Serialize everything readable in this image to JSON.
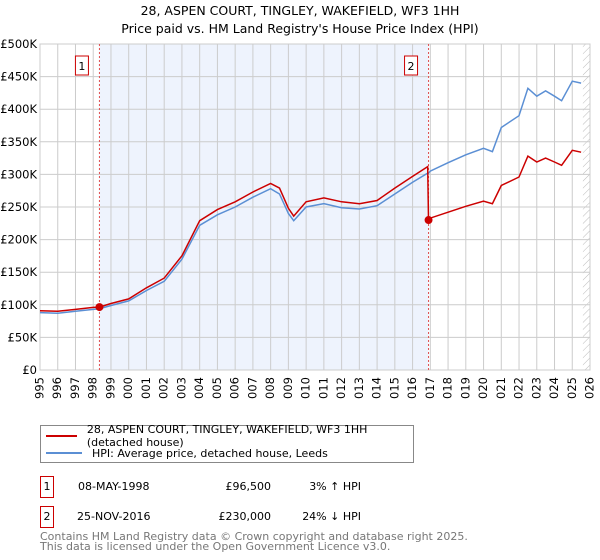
{
  "title": "28, ASPEN COURT, TINGLEY, WAKEFIELD, WF3 1HH",
  "subtitle": "Price paid vs. HM Land Registry's House Price Index (HPI)",
  "chart_data": {
    "type": "line",
    "xlim": [
      1995,
      2026
    ],
    "ylim": [
      0,
      500000
    ],
    "yticks": [
      0,
      50000,
      100000,
      150000,
      200000,
      250000,
      300000,
      350000,
      400000,
      450000,
      500000
    ],
    "ytick_labels": [
      "£0",
      "£50K",
      "£100K",
      "£150K",
      "£200K",
      "£250K",
      "£300K",
      "£350K",
      "£400K",
      "£450K",
      "£500K"
    ],
    "xticks": [
      1995,
      1996,
      1997,
      1998,
      1999,
      2000,
      2001,
      2002,
      2003,
      2004,
      2005,
      2006,
      2007,
      2008,
      2009,
      2010,
      2011,
      2012,
      2013,
      2014,
      2015,
      2016,
      2017,
      2018,
      2019,
      2020,
      2021,
      2022,
      2023,
      2024,
      2025,
      2026
    ],
    "grid": true,
    "shaded_period": [
      1998.35,
      2016.9
    ],
    "forecast_hatch_from": 2025.6,
    "colors": {
      "property": "#cc0000",
      "hpi": "#5b8fd4",
      "shade": "#eef3fd"
    },
    "series": [
      {
        "name": "28, ASPEN COURT, TINGLEY, WAKEFIELD, WF3 1HH (detached house)",
        "color": "#cc0000",
        "x": [
          1995,
          1996,
          1997,
          1998,
          1998.35,
          1999,
          2000,
          2001,
          2002,
          2003,
          2004,
          2005,
          2006,
          2007,
          2008,
          2008.5,
          2009,
          2009.3,
          2010,
          2011,
          2012,
          2013,
          2014,
          2015,
          2016,
          2016.85,
          2016.9,
          2017,
          2018,
          2019,
          2020,
          2020.5,
          2021,
          2022,
          2022.5,
          2023,
          2023.5,
          2024,
          2024.4,
          2025,
          2025.5
        ],
        "y": [
          91000,
          90000,
          93000,
          96000,
          96500,
          102000,
          109000,
          126000,
          141000,
          175000,
          229000,
          246000,
          258000,
          273000,
          286000,
          279000,
          248000,
          236000,
          258000,
          264000,
          258000,
          255000,
          260000,
          279000,
          297000,
          312000,
          230000,
          233000,
          242000,
          251000,
          259000,
          255000,
          283000,
          296000,
          328000,
          319000,
          325000,
          319000,
          314000,
          337000,
          334000
        ]
      },
      {
        "name": "HPI: Average price, detached house, Leeds",
        "color": "#5b8fd4",
        "x": [
          1995,
          1996,
          1997,
          1998,
          1998.35,
          1999,
          2000,
          2001,
          2002,
          2003,
          2004,
          2005,
          2006,
          2007,
          2008,
          2008.5,
          2009,
          2009.3,
          2010,
          2011,
          2012,
          2013,
          2014,
          2015,
          2016,
          2016.85,
          2016.9,
          2017,
          2018,
          2019,
          2020,
          2020.5,
          2021,
          2022,
          2022.5,
          2023,
          2023.5,
          2024,
          2024.4,
          2025,
          2025.5
        ],
        "y": [
          88000,
          87000,
          90000,
          93000,
          94000,
          99000,
          106000,
          122000,
          136000,
          170000,
          222000,
          238000,
          250000,
          265000,
          278000,
          270000,
          240000,
          229000,
          250000,
          255000,
          249000,
          247000,
          252000,
          270000,
          288000,
          302000,
          302000,
          305000,
          318000,
          330000,
          340000,
          335000,
          372000,
          390000,
          432000,
          420000,
          428000,
          420000,
          413000,
          443000,
          440000
        ]
      }
    ],
    "markers": [
      {
        "label": "1",
        "x": 1998.35,
        "y": 96500
      },
      {
        "label": "2",
        "x": 2016.9,
        "y": 230000
      }
    ]
  },
  "legend": {
    "property": "28, ASPEN COURT, TINGLEY, WAKEFIELD, WF3 1HH (detached house)",
    "hpi": "HPI: Average price, detached house, Leeds"
  },
  "transactions": [
    {
      "n": "1",
      "date": "08-MAY-1998",
      "price": "£96,500",
      "hpi": "3% ↑ HPI"
    },
    {
      "n": "2",
      "date": "25-NOV-2016",
      "price": "£230,000",
      "hpi": "24% ↓ HPI"
    }
  ],
  "footer": {
    "line1": "Contains HM Land Registry data © Crown copyright and database right 2025.",
    "line2": "This data is licensed under the Open Government Licence v3.0."
  }
}
